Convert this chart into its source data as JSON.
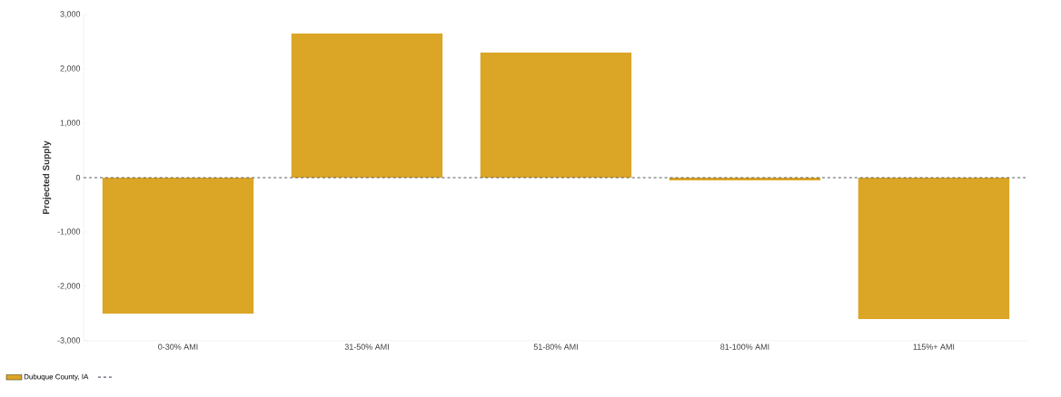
{
  "chart_data": {
    "type": "bar",
    "ylabel": "Projected Supply",
    "categories": [
      "0-30% AMI",
      "31-50% AMI",
      "51-80% AMI",
      "81-100% AMI",
      "115%+ AMI"
    ],
    "series": [
      {
        "name": "Dubuque County, IA",
        "color": "#dba526",
        "values": [
          -2500,
          2650,
          2300,
          -50,
          -2600
        ]
      }
    ],
    "ylim": [
      -3000,
      3000
    ],
    "yticks": [
      {
        "value": -3000,
        "label": "-3,000"
      },
      {
        "value": -2000,
        "label": "-2,000"
      },
      {
        "value": -1000,
        "label": "-1,000"
      },
      0,
      {
        "value": 1000,
        "label": "1,000"
      },
      {
        "value": 2000,
        "label": "2,000"
      },
      {
        "value": 3000,
        "label": "3,000"
      }
    ],
    "ref_lines": [
      {
        "axis": "y",
        "value": 0,
        "color": "#555a66",
        "line_style": "dashed"
      }
    ],
    "grid": false,
    "legend": "bottom left"
  }
}
